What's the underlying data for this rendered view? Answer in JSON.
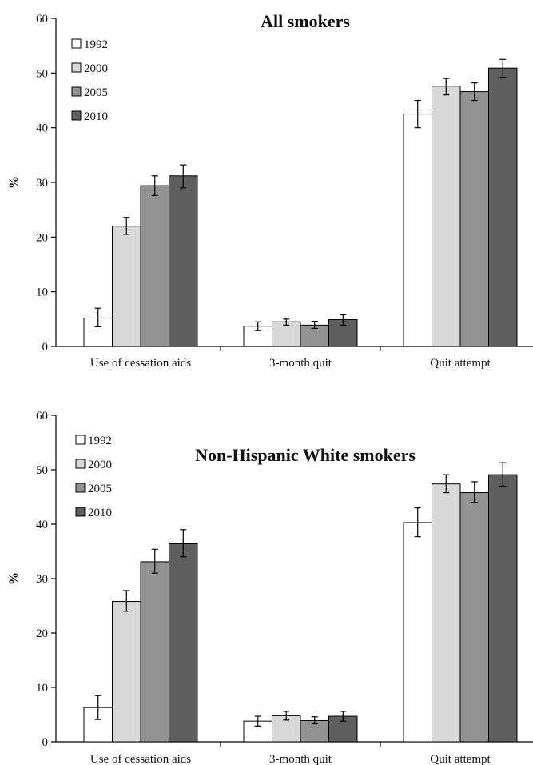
{
  "colors": {
    "1992": "#ffffff",
    "2000": "#d9d9d9",
    "2005": "#939393",
    "2010": "#5f5f5f"
  },
  "chart_data": [
    {
      "type": "bar",
      "title": "All smokers",
      "ylabel": "%",
      "xlabel": "",
      "ylim": [
        0,
        60
      ],
      "yticks": [
        0,
        10,
        20,
        30,
        40,
        50,
        60
      ],
      "categories": [
        "Use of cessation aids",
        "3-month quit",
        "Quit attempt"
      ],
      "legend_position": "top-left",
      "series": [
        {
          "name": "1992",
          "color": "#ffffff",
          "values": [
            5.2,
            3.7,
            42.5
          ],
          "err_low": [
            3.6,
            2.9,
            40.0
          ],
          "err_high": [
            7.0,
            4.5,
            45.0
          ]
        },
        {
          "name": "2000",
          "color": "#d9d9d9",
          "values": [
            22.0,
            4.5,
            47.6
          ],
          "err_low": [
            20.5,
            3.9,
            46.0
          ],
          "err_high": [
            23.6,
            5.0,
            49.0
          ]
        },
        {
          "name": "2005",
          "color": "#939393",
          "values": [
            29.4,
            3.9,
            46.6
          ],
          "err_low": [
            27.6,
            3.3,
            45.0
          ],
          "err_high": [
            31.2,
            4.6,
            48.2
          ]
        },
        {
          "name": "2010",
          "color": "#5f5f5f",
          "values": [
            31.2,
            4.9,
            50.9
          ],
          "err_low": [
            29.0,
            3.9,
            49.2
          ],
          "err_high": [
            33.2,
            5.8,
            52.5
          ]
        }
      ]
    },
    {
      "type": "bar",
      "title": "Non-Hispanic White smokers",
      "ylabel": "%",
      "xlabel": "",
      "ylim": [
        0,
        60
      ],
      "yticks": [
        0,
        10,
        20,
        30,
        40,
        50,
        60
      ],
      "categories": [
        "Use of cessation aids",
        "3-month quit",
        "Quit attempt"
      ],
      "legend_position": "top-left",
      "series": [
        {
          "name": "1992",
          "color": "#ffffff",
          "values": [
            6.3,
            3.8,
            40.3
          ],
          "err_low": [
            4.1,
            2.9,
            37.7
          ],
          "err_high": [
            8.5,
            4.7,
            43.0
          ]
        },
        {
          "name": "2000",
          "color": "#d9d9d9",
          "values": [
            25.8,
            4.8,
            47.4
          ],
          "err_low": [
            24.0,
            4.0,
            45.8
          ],
          "err_high": [
            27.8,
            5.6,
            49.1
          ]
        },
        {
          "name": "2005",
          "color": "#939393",
          "values": [
            33.1,
            3.9,
            45.8
          ],
          "err_low": [
            31.0,
            3.3,
            44.0
          ],
          "err_high": [
            35.4,
            4.6,
            47.8
          ]
        },
        {
          "name": "2010",
          "color": "#5f5f5f",
          "values": [
            36.4,
            4.7,
            49.1
          ],
          "err_low": [
            34.0,
            3.8,
            47.0
          ],
          "err_high": [
            39.0,
            5.6,
            51.3
          ]
        }
      ]
    }
  ]
}
